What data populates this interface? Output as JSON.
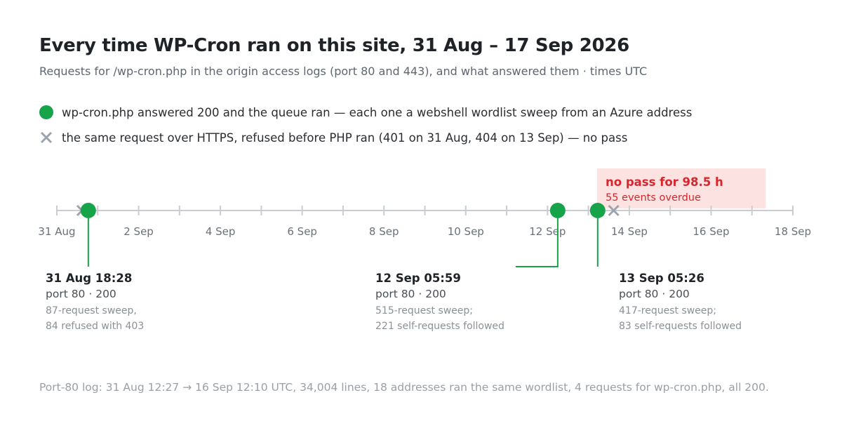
{
  "title": "Every time WP-Cron ran on this site, 31 Aug – 17 Sep 2026",
  "subtitle": "Requests for /wp-cron.php in the origin access logs (port 80 and 443), and what answered them · times UTC",
  "legend": [
    {
      "marker": "green-dot",
      "text": "wp-cron.php answered 200 and the queue ran — each one a webshell wordlist sweep from an Azure address"
    },
    {
      "marker": "gray-cross",
      "text": "the same request over HTTPS, refused before PHP ran (401 on 31 Aug, 404 on 13 Sep) — no pass"
    }
  ],
  "colors": {
    "ran": "#16a34a",
    "refused": "#9ca3af",
    "gap_fill": "#fde2e2",
    "gap_text": "#d8262d",
    "axis": "#c9ccd1"
  },
  "chart_data": {
    "type": "timeline",
    "x_unit": "date (UTC)",
    "x_range": [
      "2026-08-31",
      "2026-09-18"
    ],
    "ticks": [
      {
        "date": "2026-08-31",
        "label": "31 Aug"
      },
      {
        "date": "2026-09-02",
        "label": "2 Sep"
      },
      {
        "date": "2026-09-04",
        "label": "4 Sep"
      },
      {
        "date": "2026-09-06",
        "label": "6 Sep"
      },
      {
        "date": "2026-09-08",
        "label": "8 Sep"
      },
      {
        "date": "2026-09-10",
        "label": "10 Sep"
      },
      {
        "date": "2026-09-12",
        "label": "12 Sep"
      },
      {
        "date": "2026-09-14",
        "label": "14 Sep"
      },
      {
        "date": "2026-09-16",
        "label": "16 Sep"
      },
      {
        "date": "2026-09-18",
        "label": "18 Sep"
      }
    ],
    "minor_ticks_every_days": 1,
    "ran_events": [
      {
        "time": "2026-08-31T18:28",
        "label": "31 Aug 18:28",
        "meta": "port 80 · 200",
        "note": [
          "87-request sweep,",
          "84 refused with 403"
        ]
      },
      {
        "time": "2026-09-12T05:59",
        "label": "12 Sep 05:59",
        "meta": "port 80 · 200",
        "note": [
          "515-request sweep;",
          "221 self-requests followed"
        ]
      },
      {
        "time": "2026-09-13T05:26",
        "label": "13 Sep 05:26",
        "meta": "port 80 · 200",
        "note": [
          "417-request sweep;",
          "83 self-requests followed"
        ]
      }
    ],
    "refused_events": [
      {
        "date": "2026-08-31",
        "status": "401"
      },
      {
        "date": "2026-09-13",
        "status": "404"
      }
    ],
    "gap": {
      "title": "no pass for 98.5 h",
      "subtitle": "55 events overdue"
    }
  },
  "footnote": "Port-80 log: 31 Aug 12:27 → 16 Sep 12:10 UTC, 34,004 lines, 18 addresses ran the same wordlist, 4 requests for wp-cron.php, all 200."
}
